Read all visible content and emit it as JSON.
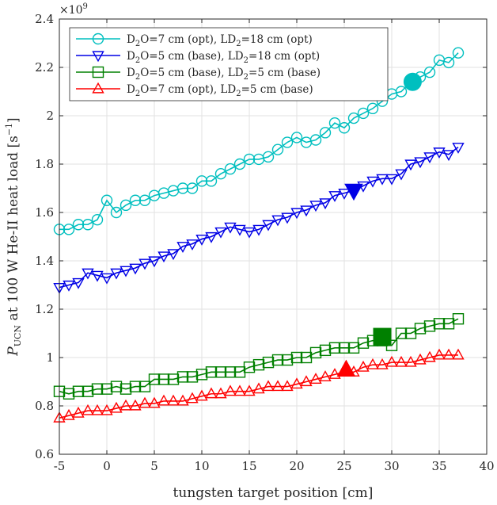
{
  "chart_data": {
    "type": "line",
    "title": "",
    "xlabel": "tungsten target position [cm]",
    "ylabel": "P_UCN at 100 W He-II heat load [s⁻¹]",
    "ylabel_parts": {
      "main": "P",
      "sub": "UCN",
      "rest": " at 100 W He-II heat load [s",
      "sup": "−1",
      "end": "]"
    },
    "y_exponent_label": {
      "base": "×10",
      "exp": "9"
    },
    "xlim": [
      -5,
      40
    ],
    "ylim": [
      0.6,
      2.4
    ],
    "xticks": [
      -5,
      0,
      5,
      10,
      15,
      20,
      25,
      30,
      35,
      40
    ],
    "xtick_labels": [
      "-5",
      "0",
      "5",
      "10",
      "15",
      "20",
      "25",
      "30",
      "35",
      "40"
    ],
    "yticks": [
      0.6,
      0.8,
      1.0,
      1.2,
      1.4,
      1.6,
      1.8,
      2.0,
      2.2,
      2.4
    ],
    "ytick_labels": [
      "0.6",
      "0.8",
      "1",
      "1.2",
      "1.4",
      "1.6",
      "1.8",
      "2",
      "2.2",
      "2.4"
    ],
    "grid": true,
    "legend_position": "top-left",
    "x": [
      -5,
      -4,
      -3,
      -2,
      -1,
      0,
      1,
      2,
      3,
      4,
      5,
      6,
      7,
      8,
      9,
      10,
      11,
      12,
      13,
      14,
      15,
      16,
      17,
      18,
      19,
      20,
      21,
      22,
      23,
      24,
      25,
      26,
      27,
      28,
      29,
      30,
      31,
      32,
      33,
      34,
      35,
      36,
      37
    ],
    "series": [
      {
        "name": "D2O=7 cm (opt), LD2=18 cm (opt)",
        "legend": {
          "a": "D",
          "a_sub": "2",
          "b": "O=7 cm (opt), LD",
          "b_sub": "2",
          "c": "=18 cm (opt)"
        },
        "color": "#00bfbf",
        "marker": "circle",
        "values": [
          1.53,
          1.53,
          1.55,
          1.55,
          1.57,
          1.65,
          1.6,
          1.63,
          1.65,
          1.65,
          1.67,
          1.68,
          1.69,
          1.7,
          1.7,
          1.73,
          1.73,
          1.76,
          1.78,
          1.8,
          1.82,
          1.82,
          1.83,
          1.86,
          1.89,
          1.91,
          1.89,
          1.9,
          1.93,
          1.97,
          1.95,
          1.99,
          2.01,
          2.03,
          2.06,
          2.09,
          2.1,
          2.14,
          2.16,
          2.18,
          2.23,
          2.22,
          2.26
        ],
        "highlight": {
          "x": 32.2,
          "y": 2.14
        }
      },
      {
        "name": "D2O=5 cm (base), LD2=18 cm (opt)",
        "legend": {
          "a": "D",
          "a_sub": "2",
          "b": "O=5 cm (base), LD",
          "b_sub": "2",
          "c": "=18 cm (opt)"
        },
        "color": "#0000e6",
        "marker": "triangle-down",
        "values": [
          1.29,
          1.3,
          1.31,
          1.35,
          1.34,
          1.33,
          1.35,
          1.36,
          1.37,
          1.39,
          1.4,
          1.42,
          1.43,
          1.46,
          1.47,
          1.49,
          1.5,
          1.52,
          1.54,
          1.53,
          1.52,
          1.53,
          1.55,
          1.57,
          1.58,
          1.6,
          1.61,
          1.63,
          1.64,
          1.67,
          1.68,
          1.69,
          1.71,
          1.73,
          1.74,
          1.74,
          1.76,
          1.8,
          1.81,
          1.83,
          1.85,
          1.84,
          1.87
        ],
        "highlight": {
          "x": 26.0,
          "y": 1.69
        }
      },
      {
        "name": "D2O=5 cm (base), LD2=5 cm (base)",
        "legend": {
          "a": "D",
          "a_sub": "2",
          "b": "O=5 cm (base), LD",
          "b_sub": "2",
          "c": "=5 cm (base)"
        },
        "color": "#008000",
        "marker": "square",
        "values": [
          0.86,
          0.85,
          0.86,
          0.86,
          0.87,
          0.87,
          0.88,
          0.87,
          0.88,
          0.88,
          0.91,
          0.91,
          0.91,
          0.92,
          0.92,
          0.93,
          0.94,
          0.94,
          0.94,
          0.94,
          0.96,
          0.97,
          0.98,
          0.99,
          0.99,
          1.0,
          1.0,
          1.02,
          1.03,
          1.04,
          1.04,
          1.04,
          1.06,
          1.07,
          1.07,
          1.05,
          1.1,
          1.1,
          1.12,
          1.13,
          1.14,
          1.14,
          1.16
        ],
        "highlight": {
          "x": 29.0,
          "y": 1.085
        }
      },
      {
        "name": "D2O=7 cm (opt), LD2=5 cm (base)",
        "legend": {
          "a": "D",
          "a_sub": "2",
          "b": "O=7 cm (opt), LD",
          "b_sub": "2",
          "c": "=5 cm (base)"
        },
        "color": "#ff0000",
        "marker": "triangle-up",
        "values": [
          0.75,
          0.76,
          0.77,
          0.78,
          0.78,
          0.78,
          0.79,
          0.8,
          0.8,
          0.81,
          0.81,
          0.82,
          0.82,
          0.82,
          0.83,
          0.84,
          0.85,
          0.85,
          0.86,
          0.86,
          0.86,
          0.87,
          0.88,
          0.88,
          0.88,
          0.89,
          0.9,
          0.91,
          0.92,
          0.93,
          0.94,
          0.94,
          0.96,
          0.97,
          0.97,
          0.98,
          0.98,
          0.98,
          0.99,
          1.0,
          1.01,
          1.01,
          1.01
        ],
        "highlight": {
          "x": 25.2,
          "y": 0.95
        }
      }
    ]
  }
}
